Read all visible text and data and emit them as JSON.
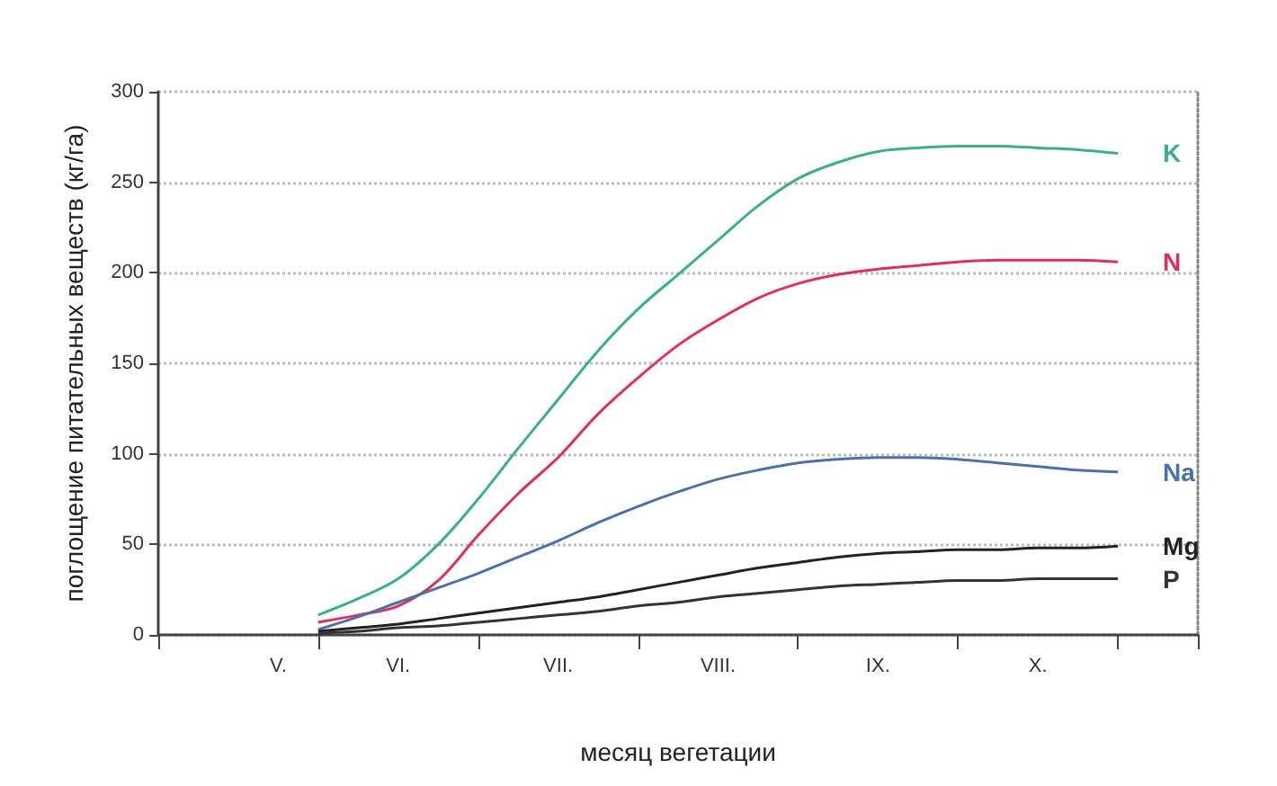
{
  "chart_data": {
    "type": "line",
    "xlabel": "месяц вегетации",
    "ylabel": "поглощение питательных веществ (кг/га)",
    "categories": [
      null,
      null,
      null,
      "V.",
      null,
      null,
      "VI.",
      null,
      null,
      null,
      "VII.",
      null,
      null,
      null,
      "VIII.",
      null,
      null,
      null,
      "IX.",
      null,
      null,
      null,
      "X.",
      null,
      null,
      null,
      null
    ],
    "ylim": [
      0,
      300
    ],
    "yticks": [
      0,
      50,
      100,
      150,
      200,
      250,
      300
    ],
    "grid": "y",
    "legend": false,
    "marker": "none",
    "line_style": "solid",
    "series": [
      {
        "name": "K",
        "color": "#3aaf8a",
        "values": [
          null,
          null,
          null,
          null,
          11,
          20,
          31,
          50,
          75,
          103,
          130,
          157,
          180,
          199,
          218,
          237,
          252,
          261,
          267,
          269,
          270,
          270,
          269,
          268,
          266,
          null,
          null
        ]
      },
      {
        "name": "N",
        "color": "#e0305a",
        "values": [
          null,
          null,
          null,
          null,
          7,
          11,
          16,
          30,
          55,
          78,
          98,
          122,
          142,
          160,
          174,
          186,
          194,
          199,
          202,
          204,
          206,
          207,
          207,
          207,
          206,
          null,
          null
        ]
      },
      {
        "name": "Na",
        "color": "#4a72a8",
        "values": [
          null,
          null,
          null,
          null,
          3,
          10,
          18,
          26,
          34,
          43,
          52,
          62,
          71,
          79,
          86,
          91,
          95,
          97,
          98,
          98,
          97,
          95,
          93,
          91,
          90,
          null,
          null
        ]
      },
      {
        "name": "Mg",
        "color": "#222222",
        "values": [
          null,
          null,
          null,
          null,
          2,
          4,
          6,
          9,
          12,
          15,
          18,
          21,
          25,
          29,
          33,
          37,
          40,
          43,
          45,
          46,
          47,
          47,
          48,
          48,
          49,
          null,
          null
        ]
      },
      {
        "name": "P",
        "color": "#333333",
        "values": [
          null,
          null,
          null,
          null,
          1,
          2,
          4,
          5,
          7,
          9,
          11,
          13,
          16,
          18,
          21,
          23,
          25,
          27,
          28,
          29,
          30,
          30,
          31,
          31,
          31,
          null,
          null
        ]
      }
    ]
  }
}
